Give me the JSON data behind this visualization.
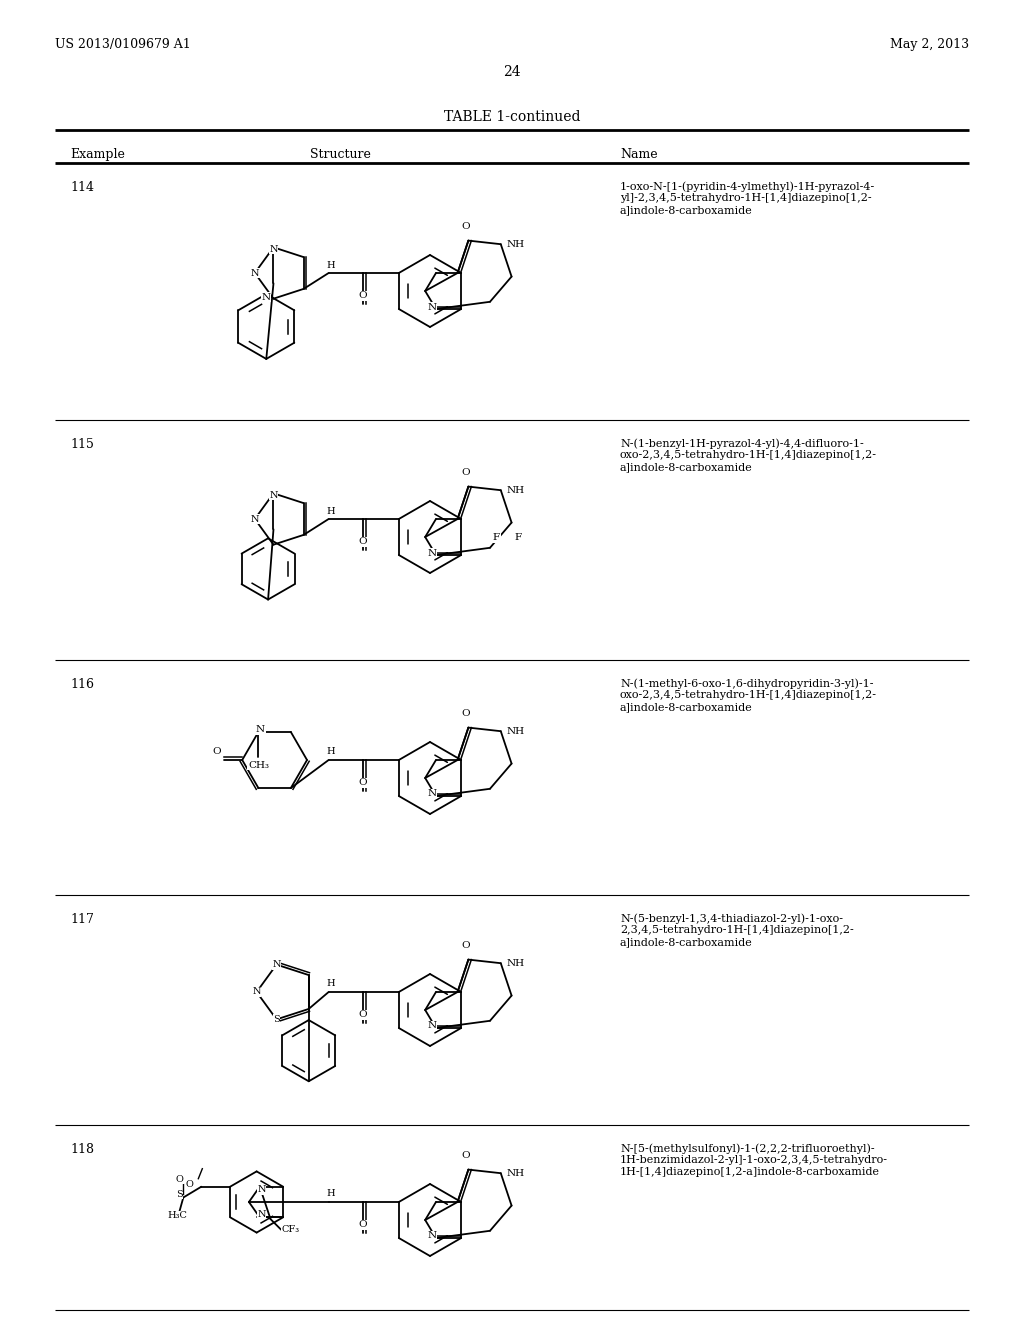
{
  "page_number": "24",
  "patent_number": "US 2013/0109679 A1",
  "patent_date": "May 2, 2013",
  "table_title": "TABLE 1-continued",
  "col_headers": [
    "Example",
    "Structure",
    "Name"
  ],
  "rows": [
    {
      "example": "114",
      "name": "1-oxo-N-[1-(pyridin-4-ylmethyl)-1H-pyrazol-4-\nyl]-2,3,4,5-tetrahydro-1H-[1,4]diazepino[1,2-\na]indole-8-carboxamide"
    },
    {
      "example": "115",
      "name": "N-(1-benzyl-1H-pyrazol-4-yl)-4,4-difluoro-1-\noxo-2,3,4,5-tetrahydro-1H-[1,4]diazepino[1,2-\na]indole-8-carboxamide"
    },
    {
      "example": "116",
      "name": "N-(1-methyl-6-oxo-1,6-dihydropyridin-3-yl)-1-\noxo-2,3,4,5-tetrahydro-1H-[1,4]diazepino[1,2-\na]indole-8-carboxamide"
    },
    {
      "example": "117",
      "name": "N-(5-benzyl-1,3,4-thiadiazol-2-yl)-1-oxo-\n2,3,4,5-tetrahydro-1H-[1,4]diazepino[1,2-\na]indole-8-carboxamide"
    },
    {
      "example": "118",
      "name": "N-[5-(methylsulfonyl)-1-(2,2,2-trifluoroethyl)-\n1H-benzimidazol-2-yl]-1-oxo-2,3,4,5-tetrahydro-\n1H-[1,4]diazepino[1,2-a]indole-8-carboxamide"
    }
  ],
  "background_color": "#ffffff",
  "text_color": "#000000"
}
